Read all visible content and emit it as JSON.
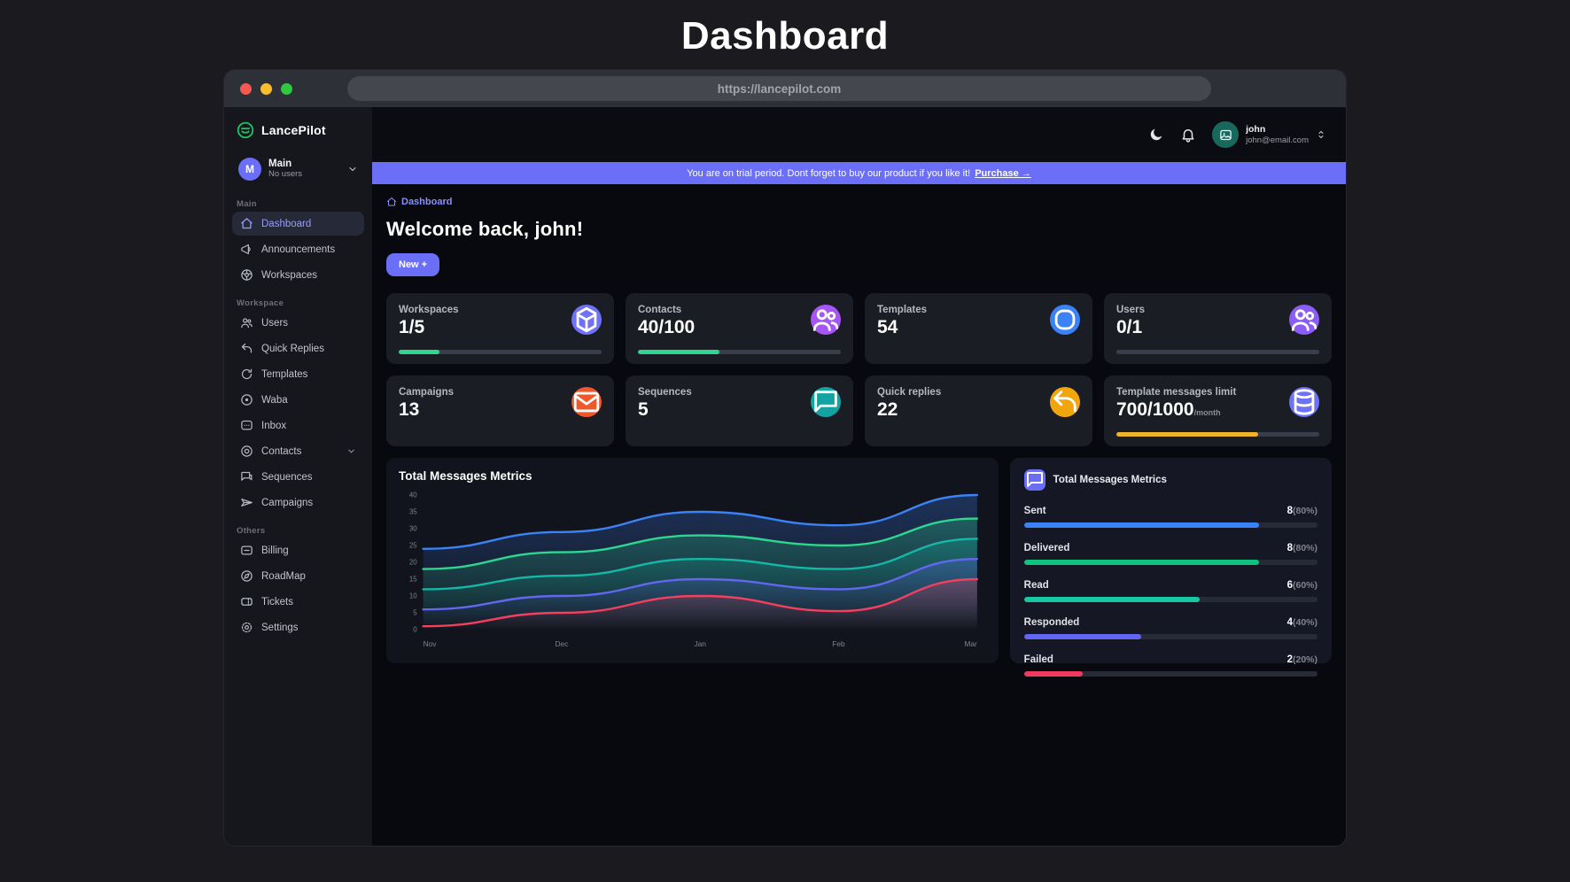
{
  "page": {
    "title": "Dashboard"
  },
  "browser": {
    "url": "https://lancepilot.com"
  },
  "brand": {
    "name": "LancePilot",
    "accent": "#21c063"
  },
  "workspace_selector": {
    "initial": "M",
    "name": "Main",
    "subtitle": "No users"
  },
  "sidebar": {
    "sections": [
      {
        "label": "Main",
        "items": [
          {
            "label": "Dashboard",
            "icon": "home",
            "active": true
          },
          {
            "label": "Announcements",
            "icon": "megaphone"
          },
          {
            "label": "Workspaces",
            "icon": "globe"
          }
        ]
      },
      {
        "label": "Workspace",
        "items": [
          {
            "label": "Users",
            "icon": "users"
          },
          {
            "label": "Quick Replies",
            "icon": "reply"
          },
          {
            "label": "Templates",
            "icon": "refresh"
          },
          {
            "label": "Waba",
            "icon": "waba"
          },
          {
            "label": "Inbox",
            "icon": "inbox"
          },
          {
            "label": "Contacts",
            "icon": "contacts",
            "chevron": true
          },
          {
            "label": "Sequences",
            "icon": "sequences"
          },
          {
            "label": "Campaigns",
            "icon": "campaigns"
          }
        ]
      },
      {
        "label": "Others",
        "items": [
          {
            "label": "Billing",
            "icon": "billing"
          },
          {
            "label": "RoadMap",
            "icon": "roadmap"
          },
          {
            "label": "Tickets",
            "icon": "tickets"
          },
          {
            "label": "Settings",
            "icon": "settings"
          }
        ]
      }
    ]
  },
  "header": {
    "user": {
      "name": "john",
      "email": "john@email.com"
    }
  },
  "banner": {
    "text": "You are on trial period. Dont forget to buy our product if you like it!",
    "link_label": "Purchase →",
    "background": "#6b6ff7"
  },
  "breadcrumb": {
    "label": "Dashboard"
  },
  "welcome": {
    "heading": "Welcome back, john!",
    "new_button_label": "New +"
  },
  "stats": [
    {
      "label": "Workspaces",
      "value": "1/5",
      "icon": "cube",
      "icon_bg": "#6e72f6",
      "progress": 20,
      "progress_color": "#2dd790"
    },
    {
      "label": "Contacts",
      "value": "40/100",
      "icon": "users",
      "icon_bg": "#a855f7",
      "progress": 40,
      "progress_color": "#2dd790"
    },
    {
      "label": "Templates",
      "value": "54",
      "icon": "squircle",
      "icon_bg": "#3b82f6"
    },
    {
      "label": "Users",
      "value": "0/1",
      "icon": "users",
      "icon_bg": "#8b5cf6",
      "progress": 0,
      "progress_color": "#2dd790"
    },
    {
      "label": "Campaigns",
      "value": "13",
      "icon": "mail",
      "icon_bg": "#f0582a"
    },
    {
      "label": "Sequences",
      "value": "5",
      "icon": "chat",
      "icon_bg": "#13a3a3"
    },
    {
      "label": "Quick replies",
      "value": "22",
      "icon": "reply",
      "icon_bg": "#f2a60d"
    },
    {
      "label": "Template messages limit",
      "value": "700/1000",
      "value_suffix": "/month",
      "icon": "database",
      "icon_bg": "#6e72f6",
      "progress": 70,
      "progress_color": "#f0b429"
    }
  ],
  "chart_data": {
    "type": "area",
    "title": "Total Messages Metrics",
    "x": [
      "Nov",
      "Dec",
      "Jan",
      "Feb",
      "Mar"
    ],
    "ylim": [
      0,
      40
    ],
    "yticks": [
      0,
      5,
      10,
      15,
      20,
      25,
      30,
      35,
      40
    ],
    "grid": false,
    "legend": "none",
    "series": [
      {
        "name": "Sent",
        "color": "#3b82f6",
        "values": [
          24,
          29,
          35,
          31,
          40
        ]
      },
      {
        "name": "Delivered",
        "color": "#2dd790",
        "values": [
          18,
          23,
          28,
          25,
          33
        ]
      },
      {
        "name": "Read",
        "color": "#14b8a6",
        "values": [
          12,
          16,
          21,
          18,
          27
        ]
      },
      {
        "name": "Responded",
        "color": "#6366f1",
        "values": [
          6,
          10,
          15,
          12,
          21
        ]
      },
      {
        "name": "Failed",
        "color": "#f43f5e",
        "values": [
          1,
          5,
          10,
          5.5,
          15
        ]
      }
    ]
  },
  "metrics_panel": {
    "title": "Total Messages Metrics",
    "icon": "chat",
    "rows": [
      {
        "label": "Sent",
        "count": 8,
        "percent": 80,
        "color": "#3b82f6"
      },
      {
        "label": "Delivered",
        "count": 8,
        "percent": 80,
        "color": "#10c47e"
      },
      {
        "label": "Read",
        "count": 6,
        "percent": 60,
        "color": "#17c8a5"
      },
      {
        "label": "Responded",
        "count": 4,
        "percent": 40,
        "color": "#6166f1"
      },
      {
        "label": "Failed",
        "count": 2,
        "percent": 20,
        "color": "#f0395c"
      }
    ]
  }
}
